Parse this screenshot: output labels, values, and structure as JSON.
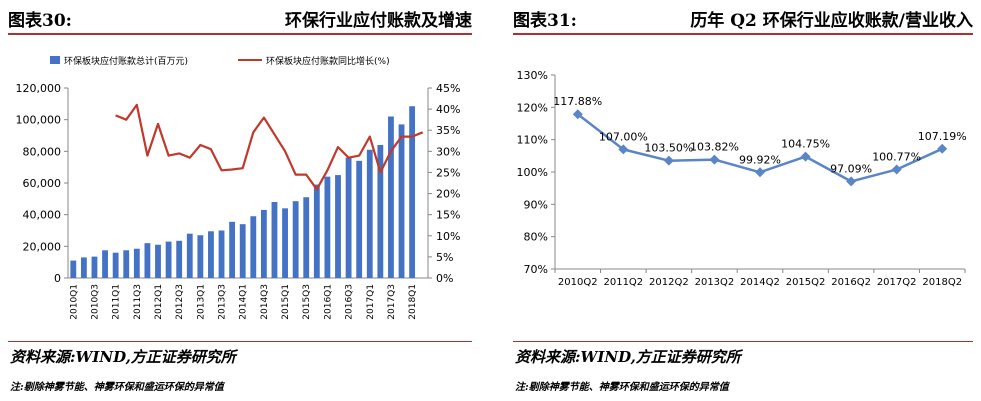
{
  "left": {
    "figure_label": "图表30:",
    "figure_title": "环保行业应付账款及增速",
    "source": "资料来源:WIND,方正证券研究所",
    "note": "注:剔除神雾节能、神雾环保和盛运环保的异常值"
  },
  "right": {
    "figure_label": "图表31:",
    "figure_title": "历年 Q2 环保行业应收账款/营业收入",
    "source": "资料来源:WIND,方正证券研究所",
    "note": "注:剔除神雾节能、神雾环保和盛运环保的异常值"
  },
  "colors": {
    "bar": "#4472c4",
    "growth_line": "#c0392b",
    "q2_line": "#5b86c5",
    "rule": "#b03030"
  },
  "chart_data": [
    {
      "type": "bar",
      "categories": [
        "2010Q1",
        "2010Q2",
        "2010Q3",
        "2010Q4",
        "2011Q1",
        "2011Q2",
        "2011Q3",
        "2011Q4",
        "2012Q1",
        "2012Q2",
        "2012Q3",
        "2012Q4",
        "2013Q1",
        "2013Q2",
        "2013Q3",
        "2013Q4",
        "2014Q1",
        "2014Q2",
        "2014Q3",
        "2014Q4",
        "2015Q1",
        "2015Q2",
        "2015Q3",
        "2015Q4",
        "2016Q1",
        "2016Q2",
        "2016Q3",
        "2016Q4",
        "2017Q1",
        "2017Q2",
        "2017Q3",
        "2017Q4",
        "2018Q1",
        "2018Q2"
      ],
      "x_tick_labels": [
        "2010Q1",
        "2010Q3",
        "2011Q1",
        "2011Q3",
        "2012Q1",
        "2012Q3",
        "2013Q1",
        "2013Q3",
        "2014Q1",
        "2014Q3",
        "2015Q1",
        "2015Q3",
        "2016Q1",
        "2016Q3",
        "2017Q1",
        "2017Q3",
        "2018Q1"
      ],
      "series": [
        {
          "name": "环保板块应付账款总计(百万元)",
          "axis": "left",
          "kind": "bar",
          "values": [
            11000,
            13000,
            13500,
            17500,
            16000,
            17500,
            18500,
            22000,
            21000,
            23000,
            23500,
            28000,
            27000,
            29500,
            30000,
            35500,
            34000,
            39000,
            43000,
            48000,
            44000,
            48500,
            51000,
            59000,
            64000,
            65000,
            76000,
            74000,
            81000,
            84000,
            102000,
            97000,
            108500,
            null
          ]
        },
        {
          "name": "环保板块应付账款同比增长(%)",
          "axis": "right",
          "kind": "line",
          "values": [
            null,
            null,
            null,
            null,
            38.5,
            37.5,
            41,
            29,
            36.5,
            29,
            29.5,
            28.5,
            31.5,
            30.5,
            25.5,
            25.7,
            26,
            34.5,
            38,
            34,
            30,
            24.5,
            24.5,
            21,
            25.5,
            31,
            28.5,
            29,
            33.5,
            25,
            30,
            33.5,
            33.5,
            34.5
          ]
        }
      ],
      "y_left": {
        "ylim": [
          0,
          120000
        ],
        "ticks": [
          "0",
          "20,000",
          "40,000",
          "60,000",
          "80,000",
          "100,000",
          "120,000"
        ]
      },
      "y_right": {
        "ylim": [
          0,
          45
        ],
        "ticks": [
          "0%",
          "5%",
          "10%",
          "15%",
          "20%",
          "25%",
          "30%",
          "35%",
          "40%",
          "45%"
        ]
      },
      "legend_position": "top"
    },
    {
      "type": "line",
      "categories": [
        "2010Q2",
        "2011Q2",
        "2012Q2",
        "2013Q2",
        "2014Q2",
        "2015Q2",
        "2016Q2",
        "2017Q2",
        "2018Q2"
      ],
      "values": [
        117.88,
        107.0,
        103.5,
        103.82,
        99.92,
        104.75,
        97.09,
        100.77,
        107.19
      ],
      "data_labels": [
        "117.88%",
        "107.00%",
        "103.50%",
        "103.82%",
        "99.92%",
        "104.75%",
        "97.09%",
        "100.77%",
        "107.19%"
      ],
      "ylim": [
        70,
        130
      ],
      "y_ticks": [
        "70%",
        "80%",
        "90%",
        "100%",
        "110%",
        "120%",
        "130%"
      ]
    }
  ]
}
